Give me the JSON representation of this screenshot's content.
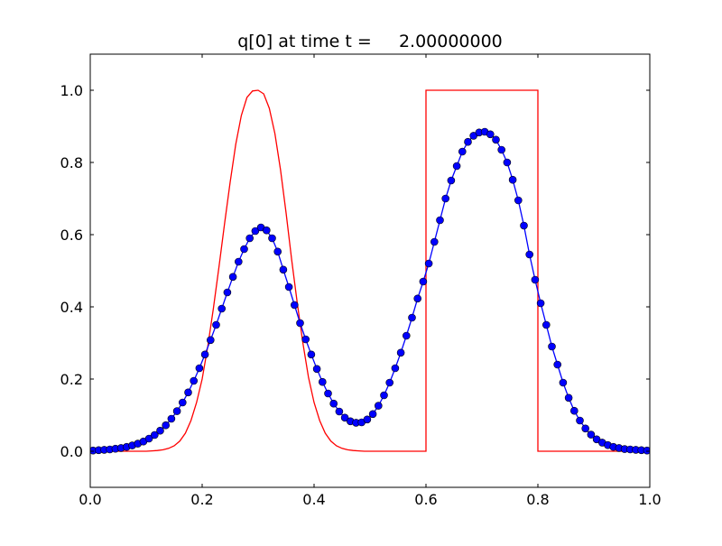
{
  "chart_data": {
    "type": "line",
    "title": "q[0] at time t =     2.00000000",
    "xlabel": "",
    "ylabel": "",
    "xlim": [
      0.0,
      1.0
    ],
    "ylim": [
      -0.1,
      1.1
    ],
    "xticks": [
      0.0,
      0.2,
      0.4,
      0.6,
      0.8,
      1.0
    ],
    "xtick_labels": [
      "0.0",
      "0.2",
      "0.4",
      "0.6",
      "0.8",
      "1.0"
    ],
    "yticks": [
      0.0,
      0.2,
      0.4,
      0.6,
      0.8,
      1.0
    ],
    "ytick_labels": [
      "0.0",
      "0.2",
      "0.4",
      "0.6",
      "0.8",
      "1.0"
    ],
    "grid": false,
    "legend": "none",
    "series": [
      {
        "kind": "line",
        "color": "#ff0000",
        "x": [
          0.0,
          0.01,
          0.02,
          0.03,
          0.04,
          0.05,
          0.06,
          0.07,
          0.08,
          0.09,
          0.1,
          0.11,
          0.12,
          0.13,
          0.14,
          0.15,
          0.16,
          0.17,
          0.18,
          0.19,
          0.2,
          0.21,
          0.22,
          0.23,
          0.24,
          0.25,
          0.26,
          0.27,
          0.28,
          0.29,
          0.3,
          0.31,
          0.32,
          0.33,
          0.34,
          0.35,
          0.36,
          0.37,
          0.38,
          0.39,
          0.4,
          0.41,
          0.42,
          0.43,
          0.44,
          0.45,
          0.46,
          0.47,
          0.48,
          0.49,
          0.5,
          0.51,
          0.52,
          0.53,
          0.54,
          0.55,
          0.56,
          0.57,
          0.58,
          0.59,
          0.6,
          0.6,
          0.8,
          0.8,
          0.81,
          0.85,
          0.9,
          0.95,
          1.0
        ],
        "y": [
          0.0,
          0.0,
          0.0,
          0.0,
          0.0,
          0.0,
          0.0,
          0.0,
          0.0,
          0.0,
          0.0,
          0.001,
          0.002,
          0.004,
          0.008,
          0.015,
          0.028,
          0.05,
          0.085,
          0.135,
          0.2,
          0.29,
          0.395,
          0.51,
          0.63,
          0.745,
          0.85,
          0.93,
          0.98,
          0.998,
          1.0,
          0.99,
          0.95,
          0.88,
          0.78,
          0.66,
          0.53,
          0.41,
          0.3,
          0.205,
          0.135,
          0.085,
          0.05,
          0.028,
          0.015,
          0.008,
          0.004,
          0.002,
          0.001,
          0.0,
          0.0,
          0.0,
          0.0,
          0.0,
          0.0,
          0.0,
          0.0,
          0.0,
          0.0,
          0.0,
          0.0,
          1.0,
          1.0,
          0.0,
          0.0,
          0.0,
          0.0,
          0.0,
          0.0
        ]
      },
      {
        "kind": "line-markers",
        "color": "#0000ff",
        "x": [
          0.005,
          0.015,
          0.025,
          0.035,
          0.045,
          0.055,
          0.065,
          0.075,
          0.085,
          0.095,
          0.105,
          0.115,
          0.125,
          0.135,
          0.145,
          0.155,
          0.165,
          0.175,
          0.185,
          0.195,
          0.205,
          0.215,
          0.225,
          0.235,
          0.245,
          0.255,
          0.265,
          0.275,
          0.285,
          0.295,
          0.305,
          0.315,
          0.325,
          0.335,
          0.345,
          0.355,
          0.365,
          0.375,
          0.385,
          0.395,
          0.405,
          0.415,
          0.425,
          0.435,
          0.445,
          0.455,
          0.465,
          0.475,
          0.485,
          0.495,
          0.505,
          0.515,
          0.525,
          0.535,
          0.545,
          0.555,
          0.565,
          0.575,
          0.585,
          0.595,
          0.605,
          0.615,
          0.625,
          0.635,
          0.645,
          0.655,
          0.665,
          0.675,
          0.685,
          0.695,
          0.705,
          0.715,
          0.725,
          0.735,
          0.745,
          0.755,
          0.765,
          0.775,
          0.785,
          0.795,
          0.805,
          0.815,
          0.825,
          0.835,
          0.845,
          0.855,
          0.865,
          0.875,
          0.885,
          0.895,
          0.905,
          0.915,
          0.925,
          0.935,
          0.945,
          0.955,
          0.965,
          0.975,
          0.985,
          0.995
        ],
        "y": [
          0.002,
          0.003,
          0.004,
          0.005,
          0.007,
          0.009,
          0.012,
          0.016,
          0.021,
          0.027,
          0.035,
          0.045,
          0.057,
          0.072,
          0.09,
          0.111,
          0.135,
          0.163,
          0.195,
          0.23,
          0.268,
          0.308,
          0.35,
          0.395,
          0.44,
          0.483,
          0.525,
          0.56,
          0.59,
          0.61,
          0.62,
          0.612,
          0.59,
          0.553,
          0.503,
          0.455,
          0.405,
          0.355,
          0.31,
          0.268,
          0.228,
          0.192,
          0.16,
          0.132,
          0.11,
          0.093,
          0.083,
          0.079,
          0.08,
          0.088,
          0.103,
          0.126,
          0.155,
          0.19,
          0.23,
          0.273,
          0.32,
          0.37,
          0.423,
          0.47,
          0.52,
          0.58,
          0.64,
          0.7,
          0.75,
          0.79,
          0.83,
          0.857,
          0.874,
          0.883,
          0.885,
          0.878,
          0.863,
          0.835,
          0.8,
          0.752,
          0.695,
          0.625,
          0.545,
          0.475,
          0.41,
          0.35,
          0.29,
          0.24,
          0.19,
          0.148,
          0.112,
          0.085,
          0.063,
          0.046,
          0.033,
          0.024,
          0.017,
          0.012,
          0.009,
          0.006,
          0.005,
          0.004,
          0.003,
          0.002
        ]
      }
    ]
  }
}
